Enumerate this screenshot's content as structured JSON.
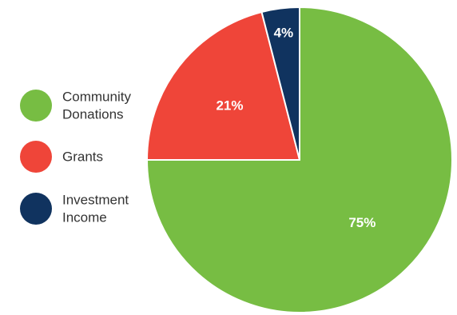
{
  "chart_data": {
    "type": "pie",
    "title": "",
    "slices": [
      {
        "label": "Community Donations",
        "legend_lines": [
          "Community",
          "Donations"
        ],
        "value": 75,
        "value_label": "75%",
        "color": "#77bd43"
      },
      {
        "label": "Grants",
        "legend_lines": [
          "Grants"
        ],
        "value": 21,
        "value_label": "21%",
        "color": "#ef4539"
      },
      {
        "label": "Investment Income",
        "legend_lines": [
          "Investment",
          "Income"
        ],
        "value": 4,
        "value_label": "4%",
        "color": "#10335f"
      }
    ],
    "legend_position": "left",
    "start_direction": "top",
    "orientation": "clockwise"
  }
}
